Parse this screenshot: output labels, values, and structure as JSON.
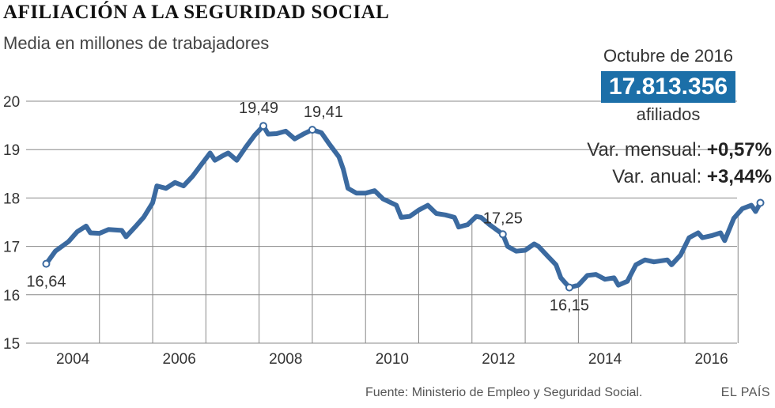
{
  "header": {
    "title": "AFILIACIÓN A LA SEGURIDAD SOCIAL",
    "subtitle": "Media en millones de trabajadores"
  },
  "highlight": {
    "top": "Octubre de 2016",
    "value": "17.813.356",
    "bottom": "afiliados",
    "monthly_label": "Var. mensual:",
    "monthly_value": "+0,57%",
    "annual_label": "Var. anual:",
    "annual_value": "+3,44%"
  },
  "footer": {
    "source": "Fuente: Ministerio de Empleo y Seguridad Social.",
    "brand": "EL PAÍS"
  },
  "colors": {
    "line": "#3b6aa0",
    "grid": "#888888",
    "accent": "#1c6fa8"
  },
  "chart_data": {
    "type": "line",
    "title": "AFILIACIÓN A LA SEGURIDAD SOCIAL",
    "subtitle": "Media en millones de trabajadores",
    "ylim": [
      15,
      20
    ],
    "xlim": [
      2003.3,
      2016.6
    ],
    "yticks": [
      "15",
      "16",
      "17",
      "18",
      "19",
      "20"
    ],
    "xticks": [
      "2004",
      "2006",
      "2008",
      "2010",
      "2012",
      "2014",
      "2016"
    ],
    "grid": "vertical lines at mid-year, horizontal lines at each y tick",
    "series": [
      {
        "values": [
          [
            2003.5,
            16.64
          ],
          [
            2003.67,
            16.9
          ],
          [
            2003.92,
            17.1
          ],
          [
            2004.08,
            17.3
          ],
          [
            2004.25,
            17.42
          ],
          [
            2004.33,
            17.28
          ],
          [
            2004.5,
            17.27
          ],
          [
            2004.67,
            17.35
          ],
          [
            2004.92,
            17.33
          ],
          [
            2005.0,
            17.2
          ],
          [
            2005.17,
            17.4
          ],
          [
            2005.33,
            17.6
          ],
          [
            2005.5,
            17.9
          ],
          [
            2005.58,
            18.25
          ],
          [
            2005.75,
            18.2
          ],
          [
            2005.92,
            18.32
          ],
          [
            2006.08,
            18.25
          ],
          [
            2006.25,
            18.45
          ],
          [
            2006.42,
            18.7
          ],
          [
            2006.58,
            18.93
          ],
          [
            2006.67,
            18.78
          ],
          [
            2006.83,
            18.88
          ],
          [
            2006.92,
            18.93
          ],
          [
            2007.08,
            18.78
          ],
          [
            2007.25,
            19.05
          ],
          [
            2007.42,
            19.3
          ],
          [
            2007.58,
            19.49
          ],
          [
            2007.67,
            19.32
          ],
          [
            2007.83,
            19.33
          ],
          [
            2008.0,
            19.38
          ],
          [
            2008.17,
            19.22
          ],
          [
            2008.33,
            19.32
          ],
          [
            2008.5,
            19.41
          ],
          [
            2008.67,
            19.35
          ],
          [
            2008.83,
            19.1
          ],
          [
            2009.0,
            18.85
          ],
          [
            2009.08,
            18.6
          ],
          [
            2009.17,
            18.2
          ],
          [
            2009.33,
            18.1
          ],
          [
            2009.5,
            18.1
          ],
          [
            2009.67,
            18.15
          ],
          [
            2009.83,
            17.98
          ],
          [
            2010.08,
            17.85
          ],
          [
            2010.17,
            17.6
          ],
          [
            2010.33,
            17.62
          ],
          [
            2010.5,
            17.75
          ],
          [
            2010.67,
            17.85
          ],
          [
            2010.83,
            17.68
          ],
          [
            2011.0,
            17.65
          ],
          [
            2011.17,
            17.6
          ],
          [
            2011.25,
            17.4
          ],
          [
            2011.42,
            17.45
          ],
          [
            2011.58,
            17.62
          ],
          [
            2011.67,
            17.6
          ],
          [
            2011.83,
            17.45
          ],
          [
            2012.08,
            17.25
          ],
          [
            2012.17,
            17.0
          ],
          [
            2012.33,
            16.9
          ],
          [
            2012.5,
            16.92
          ],
          [
            2012.67,
            17.05
          ],
          [
            2012.75,
            17.0
          ],
          [
            2012.92,
            16.8
          ],
          [
            2013.08,
            16.62
          ],
          [
            2013.17,
            16.35
          ],
          [
            2013.33,
            16.15
          ],
          [
            2013.5,
            16.2
          ],
          [
            2013.67,
            16.4
          ],
          [
            2013.83,
            16.42
          ],
          [
            2014.0,
            16.32
          ],
          [
            2014.17,
            16.35
          ],
          [
            2014.25,
            16.2
          ],
          [
            2014.42,
            16.28
          ],
          [
            2014.58,
            16.62
          ],
          [
            2014.75,
            16.72
          ],
          [
            2014.92,
            16.68
          ],
          [
            2015.17,
            16.72
          ],
          [
            2015.25,
            16.62
          ],
          [
            2015.42,
            16.82
          ],
          [
            2015.58,
            17.18
          ],
          [
            2015.75,
            17.28
          ],
          [
            2015.83,
            17.18
          ],
          [
            2016.0,
            17.22
          ],
          [
            2016.17,
            17.28
          ],
          [
            2016.25,
            17.12
          ],
          [
            2016.42,
            17.58
          ],
          [
            2016.58,
            17.78
          ],
          [
            2016.75,
            17.85
          ],
          [
            2016.83,
            17.72
          ],
          [
            2016.92,
            17.9
          ]
        ]
      }
    ],
    "annotations": [
      {
        "x": 2003.5,
        "y": 16.64,
        "label": "16,64",
        "pos": "below"
      },
      {
        "x": 2007.58,
        "y": 19.49,
        "label": "19,49",
        "pos": "above-left"
      },
      {
        "x": 2008.5,
        "y": 19.41,
        "label": "19,41",
        "pos": "above-right"
      },
      {
        "x": 2012.08,
        "y": 17.25,
        "label": "17,25",
        "pos": "above"
      },
      {
        "x": 2013.33,
        "y": 16.15,
        "label": "16,15",
        "pos": "below"
      },
      {
        "x": 2016.92,
        "y": 17.9,
        "label": "",
        "pos": "none"
      }
    ]
  }
}
